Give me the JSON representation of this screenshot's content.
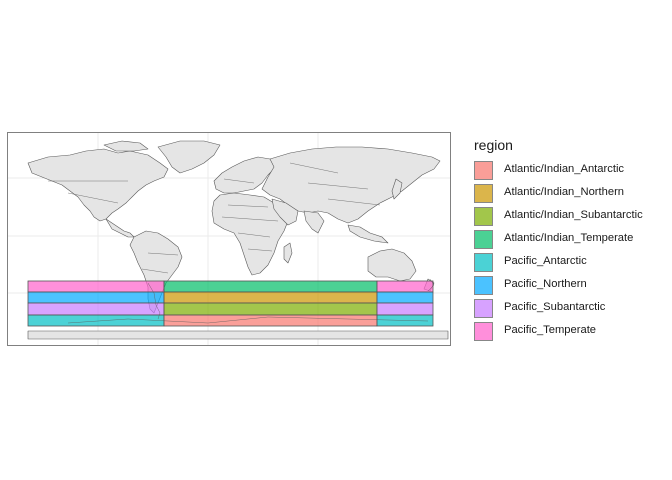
{
  "legend": {
    "title": "region",
    "items": [
      {
        "label": "Atlantic/Indian_Antarctic",
        "color": "#F8766D"
      },
      {
        "label": "Atlantic/Indian_Northern",
        "color": "#CD9600"
      },
      {
        "label": "Atlantic/Indian_Subantarctic",
        "color": "#7CAE00"
      },
      {
        "label": "Atlantic/Indian_Temperate",
        "color": "#00BE67"
      },
      {
        "label": "Pacific_Antarctic",
        "color": "#00BFC4"
      },
      {
        "label": "Pacific_Northern",
        "color": "#00A9FF"
      },
      {
        "label": "Pacific_Subantarctic",
        "color": "#C77CFF"
      },
      {
        "label": "Pacific_Temperate",
        "color": "#FF61CC"
      }
    ]
  },
  "map": {
    "land_color": "#e5e5e5",
    "border_color": "#595959",
    "grid_color": "#ebebeb"
  }
}
